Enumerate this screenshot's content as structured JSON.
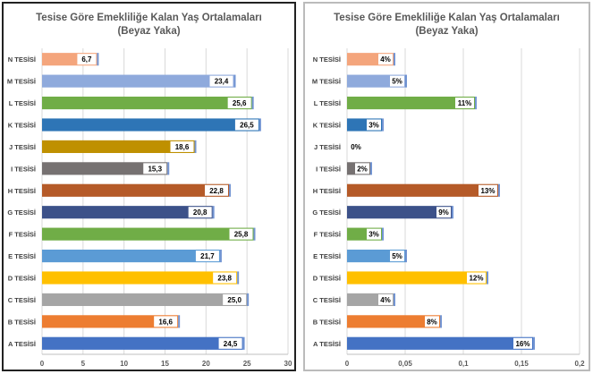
{
  "chart_data": [
    {
      "type": "bar",
      "orientation": "horizontal",
      "title": "Tesise Göre Emekliliğe Kalan Yaş Ortalamaları",
      "subtitle": "(Beyaz Yaka)",
      "categories": [
        "N TESİSİ",
        "M TESİSİ",
        "L TESİSİ",
        "K TESİSİ",
        "J TESİSİ",
        "I TESİSİ",
        "H TESİSİ",
        "G TESİSİ",
        "F TESİSİ",
        "E TESİSİ",
        "D TESİSİ",
        "C TESİSİ",
        "B TESİSİ",
        "A TESİSİ"
      ],
      "values": [
        6.7,
        23.4,
        25.6,
        26.5,
        18.6,
        15.3,
        22.8,
        20.8,
        25.8,
        21.7,
        23.8,
        25.0,
        16.6,
        24.5
      ],
      "data_labels": [
        "6,7",
        "23,4",
        "25,6",
        "26,5",
        "18,6",
        "15,3",
        "22,8",
        "20,8",
        "25,8",
        "21,7",
        "23,8",
        "25,0",
        "16,6",
        "24,5"
      ],
      "xlim": [
        0,
        30
      ],
      "xticks": [
        "0",
        "5",
        "10",
        "15",
        "20",
        "25",
        "30"
      ],
      "xtick_values": [
        0,
        5,
        10,
        15,
        20,
        25,
        30
      ],
      "grid": true,
      "colors": [
        "#f4a57c",
        "#8faadc",
        "#70ad47",
        "#2e75b6",
        "#bf9000",
        "#767171",
        "#b55a28",
        "#3c5189",
        "#70ad47",
        "#5b9bd5",
        "#ffc000",
        "#a5a5a5",
        "#ed7d31",
        "#4472c4"
      ]
    },
    {
      "type": "bar",
      "orientation": "horizontal",
      "title": "Tesise Göre Emekliliğe Kalan Yaş Ortalamaları",
      "subtitle": "(Beyaz Yaka)",
      "categories": [
        "N TESİSİ",
        "M TESİSİ",
        "L TESİSİ",
        "K TESİSİ",
        "J TESİSİ",
        "I TESİSİ",
        "H TESİSİ",
        "G TESİSİ",
        "F TESİSİ",
        "E TESİSİ",
        "D TESİSİ",
        "C TESİSİ",
        "B TESİSİ",
        "A TESİSİ"
      ],
      "values": [
        0.04,
        0.05,
        0.11,
        0.03,
        0.0,
        0.02,
        0.13,
        0.09,
        0.03,
        0.05,
        0.12,
        0.04,
        0.08,
        0.16
      ],
      "data_labels": [
        "4%",
        "5%",
        "11%",
        "3%",
        "0%",
        "2%",
        "13%",
        "9%",
        "3%",
        "5%",
        "12%",
        "4%",
        "8%",
        "16%"
      ],
      "xlim": [
        0,
        0.2
      ],
      "xticks": [
        "0",
        "0,05",
        "0,1",
        "0,15",
        "0,2"
      ],
      "xtick_values": [
        0,
        0.05,
        0.1,
        0.15,
        0.2
      ],
      "grid": true,
      "colors": [
        "#f4a57c",
        "#8faadc",
        "#70ad47",
        "#2e75b6",
        "#bf9000",
        "#767171",
        "#b55a28",
        "#3c5189",
        "#70ad47",
        "#5b9bd5",
        "#ffc000",
        "#a5a5a5",
        "#ed7d31",
        "#4472c4"
      ]
    }
  ]
}
